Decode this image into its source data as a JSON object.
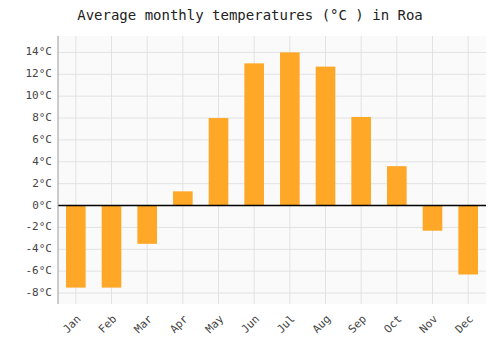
{
  "chart_data": {
    "type": "bar",
    "title": "Average monthly temperatures (°C ) in Roa",
    "categories": [
      "Jan",
      "Feb",
      "Mar",
      "Apr",
      "May",
      "Jun",
      "Jul",
      "Aug",
      "Sep",
      "Oct",
      "Nov",
      "Dec"
    ],
    "values": [
      -7.5,
      -7.5,
      -3.5,
      1.3,
      8.0,
      13.0,
      14.0,
      12.7,
      8.1,
      3.6,
      -2.3,
      -6.3
    ],
    "color": "#FFA726",
    "ylim": [
      -9,
      15.5
    ],
    "yticks": [
      {
        "value": -8,
        "label": "-8°C"
      },
      {
        "value": -6,
        "label": "-6°C"
      },
      {
        "value": -4,
        "label": "-4°C"
      },
      {
        "value": -2,
        "label": "-2°C"
      },
      {
        "value": 0,
        "label": "0°C"
      },
      {
        "value": 2,
        "label": "2°C"
      },
      {
        "value": 4,
        "label": "4°C"
      },
      {
        "value": 6,
        "label": "6°C"
      },
      {
        "value": 8,
        "label": "8°C"
      },
      {
        "value": 10,
        "label": "10°C"
      },
      {
        "value": 12,
        "label": "12°C"
      },
      {
        "value": 14,
        "label": "14°C"
      }
    ],
    "grid": true
  }
}
